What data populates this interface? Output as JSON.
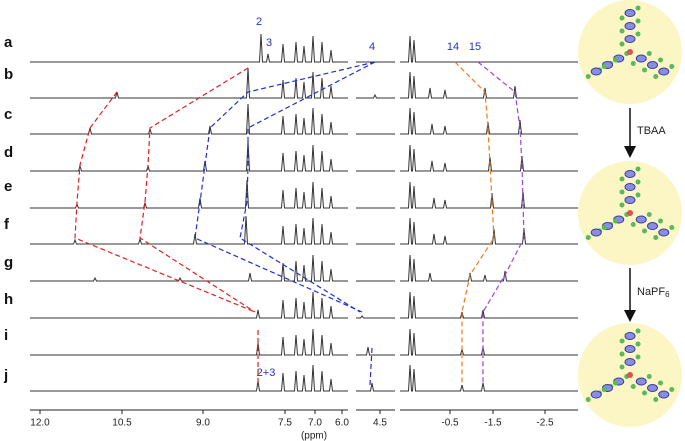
{
  "row_labels": [
    "a",
    "b",
    "c",
    "d",
    "e",
    "f",
    "g",
    "h",
    "i",
    "j"
  ],
  "axis": {
    "ticks": [
      "12.0",
      "10.5",
      "9.0",
      "7.5",
      "7.0",
      "6.0",
      "4.5",
      "-0.5",
      "-1.5",
      "-2.5"
    ],
    "unit": "(ppm)"
  },
  "peak_labels": [
    "2",
    "3",
    "4",
    "14",
    "15",
    "2+3"
  ],
  "reagents": [
    {
      "text": "TBAA"
    },
    {
      "text": "NaPF",
      "subscript": "6"
    }
  ]
}
